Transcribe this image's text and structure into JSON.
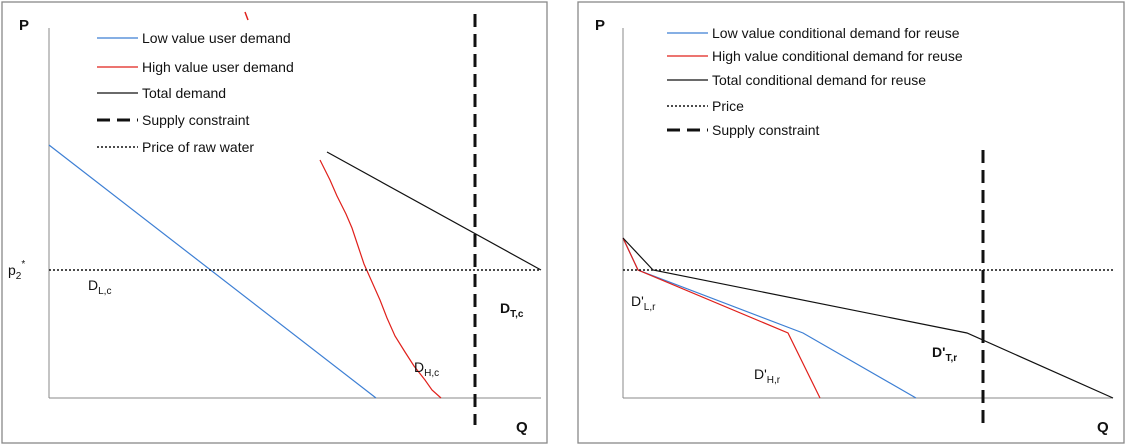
{
  "left_panel": {
    "y_axis_label": "P",
    "x_axis_label": "Q",
    "price_label": "p",
    "price_label_sub": "2",
    "price_label_sup": "*",
    "legend": [
      {
        "label": "Low value user demand",
        "style": "blue"
      },
      {
        "label": "High value user demand",
        "style": "red"
      },
      {
        "label": "Total demand",
        "style": "black"
      },
      {
        "label": "Supply constraint",
        "style": "long-dash"
      },
      {
        "label": "Price of raw water",
        "style": "dotted"
      }
    ],
    "curve_labels": {
      "low_main": "D",
      "low_sub": "L,c",
      "high_main": "D",
      "high_sub": "H,c",
      "total_main": "D",
      "total_sub": "T,c"
    }
  },
  "right_panel": {
    "y_axis_label": "P",
    "x_axis_label": "Q",
    "legend": [
      {
        "label": "Low value conditional demand for reuse",
        "style": "blue"
      },
      {
        "label": "High value conditional demand for reuse",
        "style": "red"
      },
      {
        "label": "Total conditional demand for reuse",
        "style": "black"
      },
      {
        "label": "Price",
        "style": "dotted"
      },
      {
        "label": "Supply constraint",
        "style": "long-dash"
      }
    ],
    "curve_labels": {
      "low_main": "D'",
      "low_sub": "L,r",
      "high_main": "D'",
      "high_sub": "H,r",
      "total_main": "D'",
      "total_sub": "T,r"
    }
  },
  "colors": {
    "low": "#3d7fd4",
    "high": "#e0201b",
    "total": "#111111",
    "frame": "#888888"
  }
}
